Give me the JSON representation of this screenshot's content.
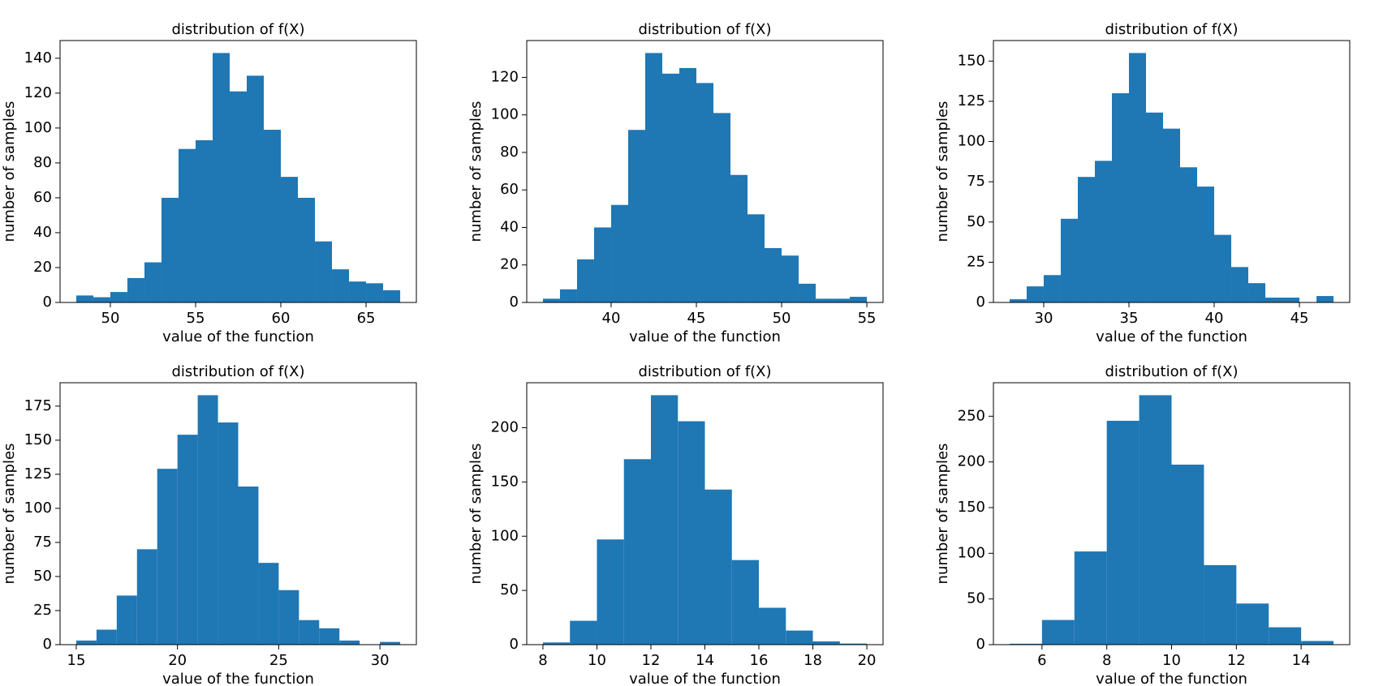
{
  "chart_data": [
    {
      "type": "histogram",
      "title": "distribution of f(X)",
      "xlabel": "value of the function",
      "ylabel": "number of samples",
      "color": "#1f77b4",
      "bins": [
        48,
        49,
        50,
        51,
        52,
        53,
        54,
        55,
        56,
        57,
        58,
        59,
        60,
        61,
        62,
        63,
        64,
        65,
        66,
        67
      ],
      "counts": [
        4,
        3,
        6,
        14,
        23,
        60,
        88,
        93,
        143,
        121,
        130,
        99,
        72,
        60,
        35,
        19,
        12,
        11,
        7
      ],
      "xlim": [
        47.05,
        67.95
      ],
      "ylim": [
        0,
        150.15
      ],
      "xticks": [
        50,
        55,
        60,
        65
      ],
      "yticks": [
        0,
        20,
        40,
        60,
        80,
        100,
        120,
        140
      ]
    },
    {
      "type": "histogram",
      "title": "distribution of f(X)",
      "xlabel": "value of the function",
      "ylabel": "number of samples",
      "color": "#1f77b4",
      "bins": [
        36,
        37,
        38,
        39,
        40,
        41,
        42,
        43,
        44,
        45,
        46,
        47,
        48,
        49,
        50,
        51,
        52,
        53,
        54,
        55
      ],
      "counts": [
        2,
        7,
        23,
        40,
        52,
        92,
        133,
        122,
        125,
        117,
        101,
        68,
        47,
        29,
        25,
        10,
        2,
        2,
        3
      ],
      "xlim": [
        35.05,
        55.95
      ],
      "ylim": [
        0,
        139.65
      ],
      "xticks": [
        40,
        45,
        50,
        55
      ],
      "yticks": [
        0,
        20,
        40,
        60,
        80,
        100,
        120
      ]
    },
    {
      "type": "histogram",
      "title": "distribution of f(X)",
      "xlabel": "value of the function",
      "ylabel": "number of samples",
      "color": "#1f77b4",
      "bins": [
        28,
        29,
        30,
        31,
        32,
        33,
        34,
        35,
        36,
        37,
        38,
        39,
        40,
        41,
        42,
        43,
        44,
        45,
        46,
        47
      ],
      "counts": [
        2,
        10,
        17,
        52,
        78,
        88,
        130,
        155,
        118,
        108,
        84,
        72,
        42,
        22,
        12,
        3,
        3,
        0,
        4
      ],
      "xlim": [
        27.05,
        47.95
      ],
      "ylim": [
        0,
        162.75
      ],
      "xticks": [
        30,
        35,
        40,
        45
      ],
      "yticks": [
        0,
        25,
        50,
        75,
        100,
        125,
        150
      ]
    },
    {
      "type": "histogram",
      "title": "distribution of f(X)",
      "xlabel": "value of the function",
      "ylabel": "number of samples",
      "color": "#1f77b4",
      "bins": [
        15,
        16,
        17,
        18,
        19,
        20,
        21,
        22,
        23,
        24,
        25,
        26,
        27,
        28,
        29,
        30,
        31
      ],
      "counts": [
        3,
        11,
        36,
        70,
        129,
        154,
        183,
        163,
        116,
        60,
        40,
        18,
        12,
        3,
        0,
        2
      ],
      "xlim": [
        14.2,
        31.8
      ],
      "ylim": [
        0,
        192.15
      ],
      "xticks": [
        15,
        20,
        25,
        30
      ],
      "yticks": [
        0,
        25,
        50,
        75,
        100,
        125,
        150,
        175
      ]
    },
    {
      "type": "histogram",
      "title": "distribution of f(X)",
      "xlabel": "value of the function",
      "ylabel": "number of samples",
      "color": "#1f77b4",
      "bins": [
        8,
        9,
        10,
        11,
        12,
        13,
        14,
        15,
        16,
        17,
        18,
        19,
        20
      ],
      "counts": [
        2,
        22,
        97,
        171,
        230,
        206,
        143,
        78,
        34,
        13,
        3,
        1
      ],
      "xlim": [
        7.4,
        20.6
      ],
      "ylim": [
        0,
        241.5
      ],
      "xticks": [
        8,
        10,
        12,
        14,
        16,
        18,
        20
      ],
      "yticks": [
        0,
        50,
        100,
        150,
        200
      ]
    },
    {
      "type": "histogram",
      "title": "distribution of f(X)",
      "xlabel": "value of the function",
      "ylabel": "number of samples",
      "color": "#1f77b4",
      "bins": [
        5,
        6,
        7,
        8,
        9,
        10,
        11,
        12,
        13,
        14,
        15
      ],
      "counts": [
        1,
        27,
        102,
        245,
        273,
        197,
        87,
        45,
        19,
        4
      ],
      "xlim": [
        4.5,
        15.5
      ],
      "ylim": [
        0,
        286.65
      ],
      "xticks": [
        6,
        8,
        10,
        12,
        14
      ],
      "yticks": [
        0,
        50,
        100,
        150,
        200,
        250
      ]
    }
  ]
}
